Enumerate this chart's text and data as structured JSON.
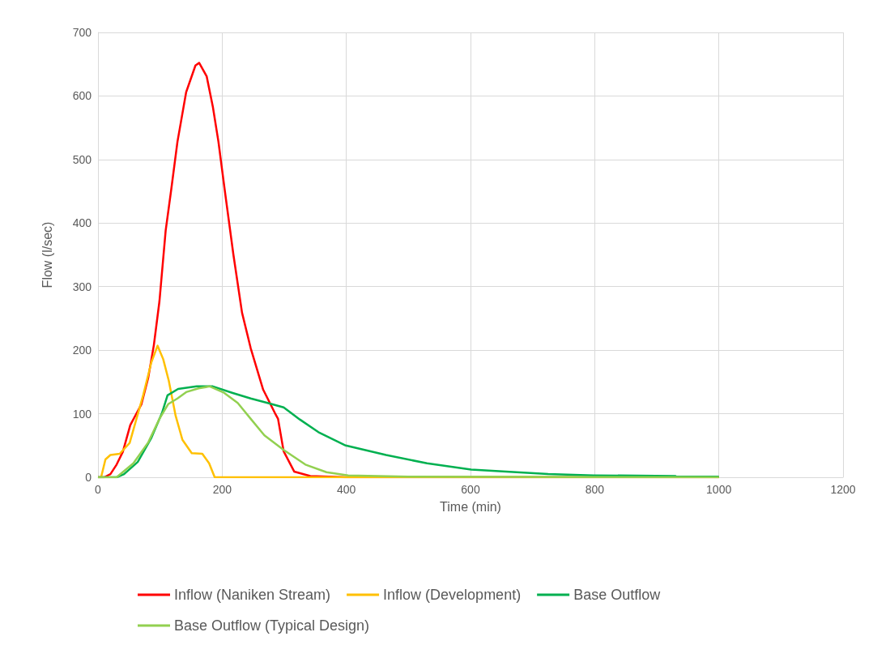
{
  "chart_data": {
    "type": "line",
    "xlabel": "Time (min)",
    "ylabel": "Flow (l/sec)",
    "xlim": [
      0,
      1200
    ],
    "xticks": [
      0,
      200,
      400,
      600,
      800,
      1000,
      1200
    ],
    "ylim": [
      0,
      700
    ],
    "yticks": [
      0,
      100,
      200,
      300,
      400,
      500,
      600,
      700
    ],
    "grid": true,
    "legend": "bottom",
    "marker": "none",
    "line_style": "solid",
    "series": [
      {
        "name": "Inflow (Naniken Stream)",
        "color": "#ff0000",
        "x": [
          0,
          10,
          20,
          30,
          40,
          52,
          70,
          81,
          90,
          99,
          109,
          118,
          128,
          142,
          157,
          163,
          175,
          185,
          194,
          204,
          218,
          232,
          246,
          266,
          285,
          290,
          299,
          316,
          342,
          400,
          1000
        ],
        "values": [
          0,
          0,
          5,
          20,
          40,
          82,
          115,
          157,
          208,
          277,
          388,
          453,
          528,
          606,
          648,
          652,
          631,
          583,
          528,
          453,
          351,
          259,
          203,
          138,
          101,
          92,
          41,
          9,
          2,
          0,
          0
        ]
      },
      {
        "name": "Inflow (Development)",
        "color": "#ffc000",
        "x": [
          0,
          5,
          12,
          20,
          35,
          51,
          73,
          86,
          96,
          105,
          114,
          125,
          136,
          151,
          168,
          179,
          188,
          1000
        ],
        "values": [
          0,
          0,
          28,
          35,
          37,
          54,
          130,
          181,
          207,
          186,
          152,
          97,
          59,
          38,
          37,
          22,
          0,
          0
        ]
      },
      {
        "name": "Base Outflow",
        "color": "#00b050",
        "x": [
          0,
          30,
          42,
          64,
          86,
          103,
          112,
          129,
          159,
          185,
          216,
          246,
          273,
          299,
          325,
          355,
          399,
          464,
          530,
          601,
          725,
          798,
          930,
          931,
          1000
        ],
        "values": [
          0,
          0,
          5,
          24,
          62,
          101,
          129,
          139,
          143,
          143,
          133,
          124,
          117,
          110,
          91,
          71,
          50,
          35,
          22,
          12,
          5,
          3,
          2,
          1,
          1
        ]
      },
      {
        "name": "Base Outflow (Typical Design)",
        "color": "#92d050",
        "x": [
          0,
          30,
          57,
          81,
          99,
          113,
          128,
          142,
          162,
          180,
          203,
          225,
          246,
          268,
          299,
          334,
          368,
          403,
          500,
          1000
        ],
        "values": [
          0,
          0,
          22,
          55,
          92,
          115,
          124,
          134,
          140,
          143,
          133,
          117,
          92,
          66,
          43,
          20,
          8,
          3,
          1,
          0
        ]
      }
    ]
  }
}
